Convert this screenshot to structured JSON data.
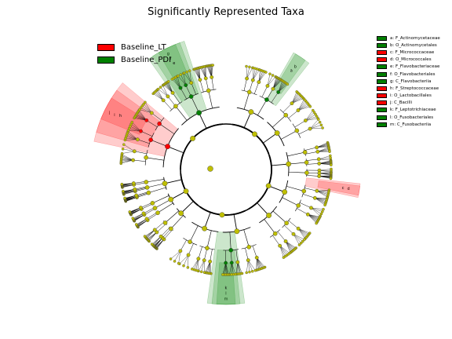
{
  "chart_data": {
    "type": "cladogram",
    "title": "Significantly Represented Taxa",
    "classes": [
      {
        "name": "Baseline_LT",
        "color": "#ff0000"
      },
      {
        "name": "Baseline_PDI",
        "color": "#008000"
      }
    ],
    "clades": [
      {
        "letter": "a",
        "label": "a: F_Actinomycetaceae",
        "class": "Baseline_PDI",
        "color": "#008000"
      },
      {
        "letter": "b",
        "label": "b: O_Actinomycetales",
        "class": "Baseline_PDI",
        "color": "#008000"
      },
      {
        "letter": "c",
        "label": "c: F_Micrococcaceae",
        "class": "Baseline_LT",
        "color": "#ff0000"
      },
      {
        "letter": "d",
        "label": "d: O_Micrococcales",
        "class": "Baseline_LT",
        "color": "#ff0000"
      },
      {
        "letter": "e",
        "label": "e: F_Flavobacteriaceae",
        "class": "Baseline_PDI",
        "color": "#008000"
      },
      {
        "letter": "f",
        "label": "f: O_Flavobacteriales",
        "class": "Baseline_PDI",
        "color": "#008000"
      },
      {
        "letter": "g",
        "label": "g: C_Flavobacteriia",
        "class": "Baseline_PDI",
        "color": "#008000"
      },
      {
        "letter": "h",
        "label": "h: F_Streptococcaceae",
        "class": "Baseline_LT",
        "color": "#ff0000"
      },
      {
        "letter": "i",
        "label": "i: O_Lactobacillales",
        "class": "Baseline_LT",
        "color": "#ff0000"
      },
      {
        "letter": "j",
        "label": "j: C_Bacilli",
        "class": "Baseline_LT",
        "color": "#ff0000"
      },
      {
        "letter": "k",
        "label": "k: F_Leptotrichiaceae",
        "class": "Baseline_PDI",
        "color": "#008000"
      },
      {
        "letter": "l",
        "label": "l: O_Fusobacteriales",
        "class": "Baseline_PDI",
        "color": "#008000"
      },
      {
        "letter": "m",
        "label": "m: C_Fusobacteriia",
        "class": "Baseline_PDI",
        "color": "#008000"
      }
    ],
    "node_color": "#bfbf00"
  }
}
